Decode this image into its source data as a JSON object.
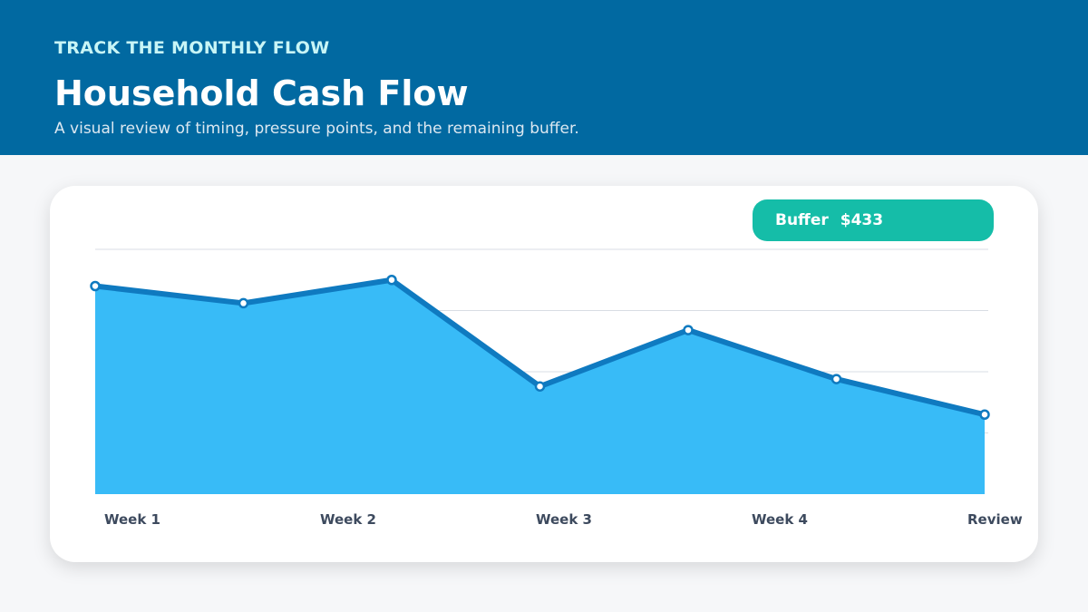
{
  "header": {
    "eyebrow": "TRACK THE MONTHLY FLOW",
    "title": "Household Cash Flow",
    "subtitle": "A visual review of timing, pressure points, and the remaining buffer."
  },
  "badge": {
    "label": "Buffer",
    "value": "$433"
  },
  "colors": {
    "header_bg": "#0169a1",
    "area_fill": "#38bbf7",
    "line": "#0f7ac0",
    "badge_bg": "#15bda8"
  },
  "chart_data": {
    "type": "area",
    "title": "",
    "xlabel": "",
    "ylabel": "",
    "x_tick_labels": [
      "Week 1",
      "Week 2",
      "Week 3",
      "Week 4",
      "Review"
    ],
    "ylim": [
      0,
      100
    ],
    "gridlines": [
      25,
      50,
      75,
      100
    ],
    "grid": true,
    "y_tick_labels_shown": false,
    "series": [
      {
        "values": [
          85,
          78,
          87.5,
          44,
          67,
          47,
          32.5
        ]
      }
    ]
  }
}
